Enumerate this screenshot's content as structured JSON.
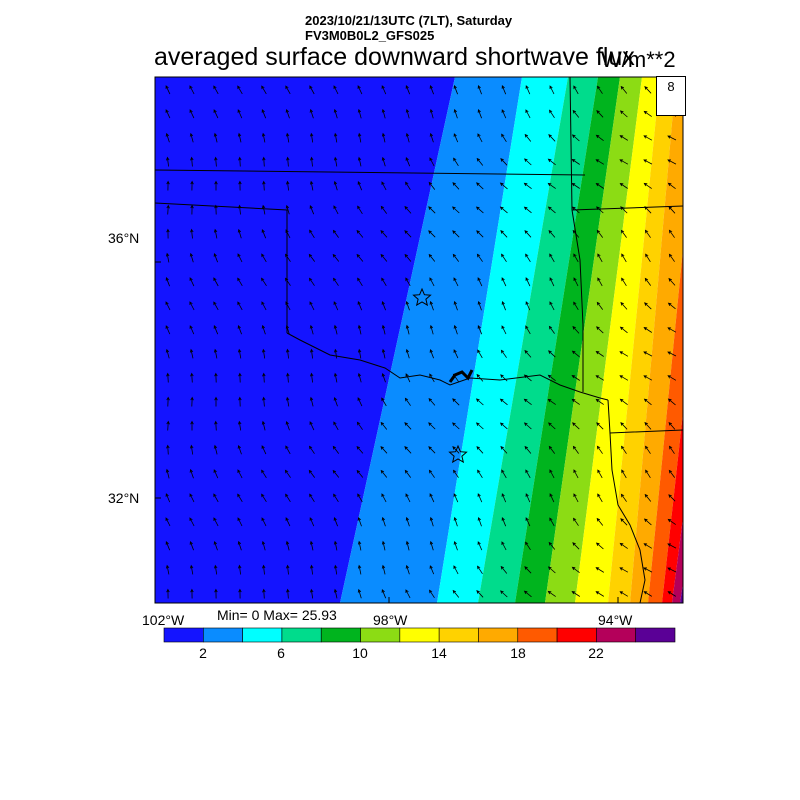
{
  "header": {
    "date_line": "2023/10/21/13UTC (7LT), Saturday",
    "model_line": "FV3M0B0L2_GFS025",
    "title": "averaged surface downward shortwave flux",
    "units": "W/m**2"
  },
  "map": {
    "lat_labels": [
      "36°N",
      "32°N"
    ],
    "lon_labels": [
      "102°W",
      "98°W",
      "94°W"
    ],
    "ref_vector_label": "8",
    "stars": [
      "star-marker",
      "star-marker"
    ]
  },
  "stats": {
    "text": "Min= 0 Max= 25.93"
  },
  "colorbar": {
    "colors": [
      "#1414ff",
      "#0a8cff",
      "#00ffff",
      "#00dc8c",
      "#00b41e",
      "#8cdc14",
      "#ffff00",
      "#ffd200",
      "#ffaa00",
      "#ff5a00",
      "#ff0000",
      "#b4005a",
      "#5a0096"
    ],
    "labels": [
      "2",
      "6",
      "10",
      "14",
      "18",
      "22"
    ]
  },
  "colors": {
    "frame": "#000000",
    "background": "#ffffff"
  }
}
